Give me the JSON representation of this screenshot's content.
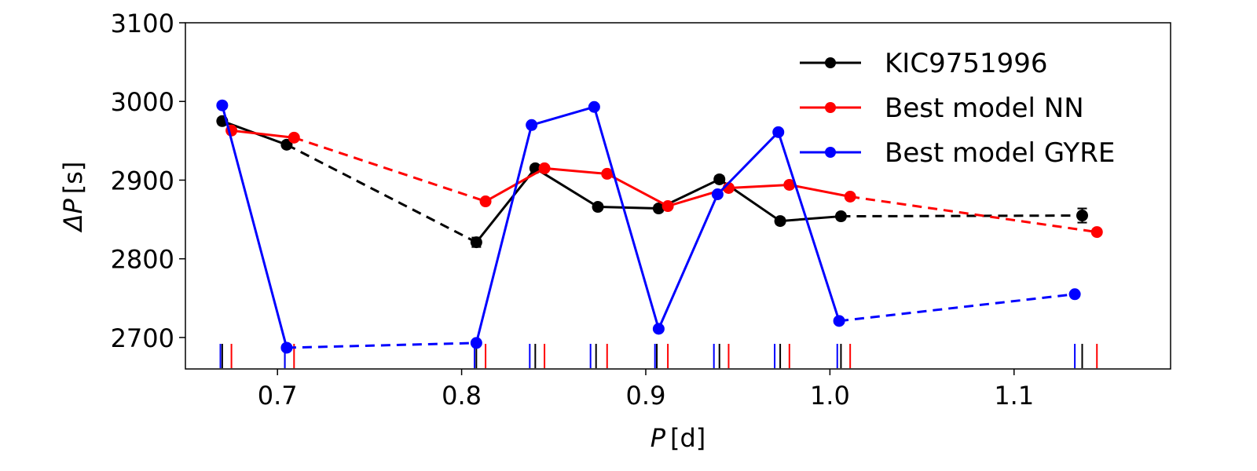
{
  "chart_data": {
    "type": "line",
    "title": "",
    "xlabel": "P [d]",
    "ylabel": "ΔP [s]",
    "xlabel_symbol": "P",
    "xlabel_unit": "[d]",
    "ylabel_symbol": "ΔP",
    "ylabel_unit": "[s]",
    "xlim": [
      0.65,
      1.185
    ],
    "ylim": [
      2660,
      3100
    ],
    "xticks": [
      0.7,
      0.8,
      0.9,
      1.0,
      1.1
    ],
    "xtick_labels": [
      "0.7",
      "0.8",
      "0.9",
      "1.0",
      "1.1"
    ],
    "yticks": [
      2700,
      2800,
      2900,
      3000,
      3100
    ],
    "ytick_labels": [
      "2700",
      "2800",
      "2900",
      "3000",
      "3100"
    ],
    "legend_position": "top-right",
    "series": [
      {
        "name": "KIC9751996",
        "color": "#000000",
        "points": [
          {
            "x": 0.67,
            "y": 2975
          },
          {
            "x": 0.705,
            "y": 2945
          },
          {
            "x": 0.808,
            "y": 2821
          },
          {
            "x": 0.84,
            "y": 2915
          },
          {
            "x": 0.874,
            "y": 2866
          },
          {
            "x": 0.907,
            "y": 2864
          },
          {
            "x": 0.94,
            "y": 2901
          },
          {
            "x": 0.973,
            "y": 2848
          },
          {
            "x": 1.006,
            "y": 2854
          },
          {
            "x": 1.137,
            "y": 2855
          }
        ],
        "errors": [
          4,
          4,
          6,
          4,
          4,
          4,
          4,
          4,
          4,
          9
        ],
        "dashed_segments": [
          1,
          8
        ],
        "ticks": [
          0.67,
          0.704,
          0.808,
          0.84,
          0.873,
          0.906,
          0.94,
          0.973,
          1.006,
          1.137
        ]
      },
      {
        "name": "Best model NN",
        "color": "#ff0000",
        "points": [
          {
            "x": 0.675,
            "y": 2963
          },
          {
            "x": 0.709,
            "y": 2954
          },
          {
            "x": 0.813,
            "y": 2873
          },
          {
            "x": 0.845,
            "y": 2915
          },
          {
            "x": 0.879,
            "y": 2908
          },
          {
            "x": 0.912,
            "y": 2867
          },
          {
            "x": 0.945,
            "y": 2890
          },
          {
            "x": 0.978,
            "y": 2894
          },
          {
            "x": 1.011,
            "y": 2879
          },
          {
            "x": 1.145,
            "y": 2834
          }
        ],
        "dashed_segments": [
          1,
          8
        ],
        "ticks": [
          0.675,
          0.709,
          0.813,
          0.845,
          0.879,
          0.912,
          0.945,
          0.978,
          1.011,
          1.145
        ]
      },
      {
        "name": "Best model GYRE",
        "color": "#0000ff",
        "points": [
          {
            "x": 0.67,
            "y": 2995
          },
          {
            "x": 0.705,
            "y": 2687
          },
          {
            "x": 0.808,
            "y": 2693
          },
          {
            "x": 0.838,
            "y": 2970
          },
          {
            "x": 0.872,
            "y": 2993
          },
          {
            "x": 0.907,
            "y": 2711
          },
          {
            "x": 0.939,
            "y": 2882
          },
          {
            "x": 0.972,
            "y": 2961
          },
          {
            "x": 1.005,
            "y": 2721
          },
          {
            "x": 1.133,
            "y": 2755
          }
        ],
        "dashed_segments": [
          1,
          8
        ],
        "ticks": [
          0.669,
          0.704,
          0.807,
          0.837,
          0.87,
          0.905,
          0.937,
          0.97,
          1.004,
          1.133
        ]
      }
    ]
  }
}
